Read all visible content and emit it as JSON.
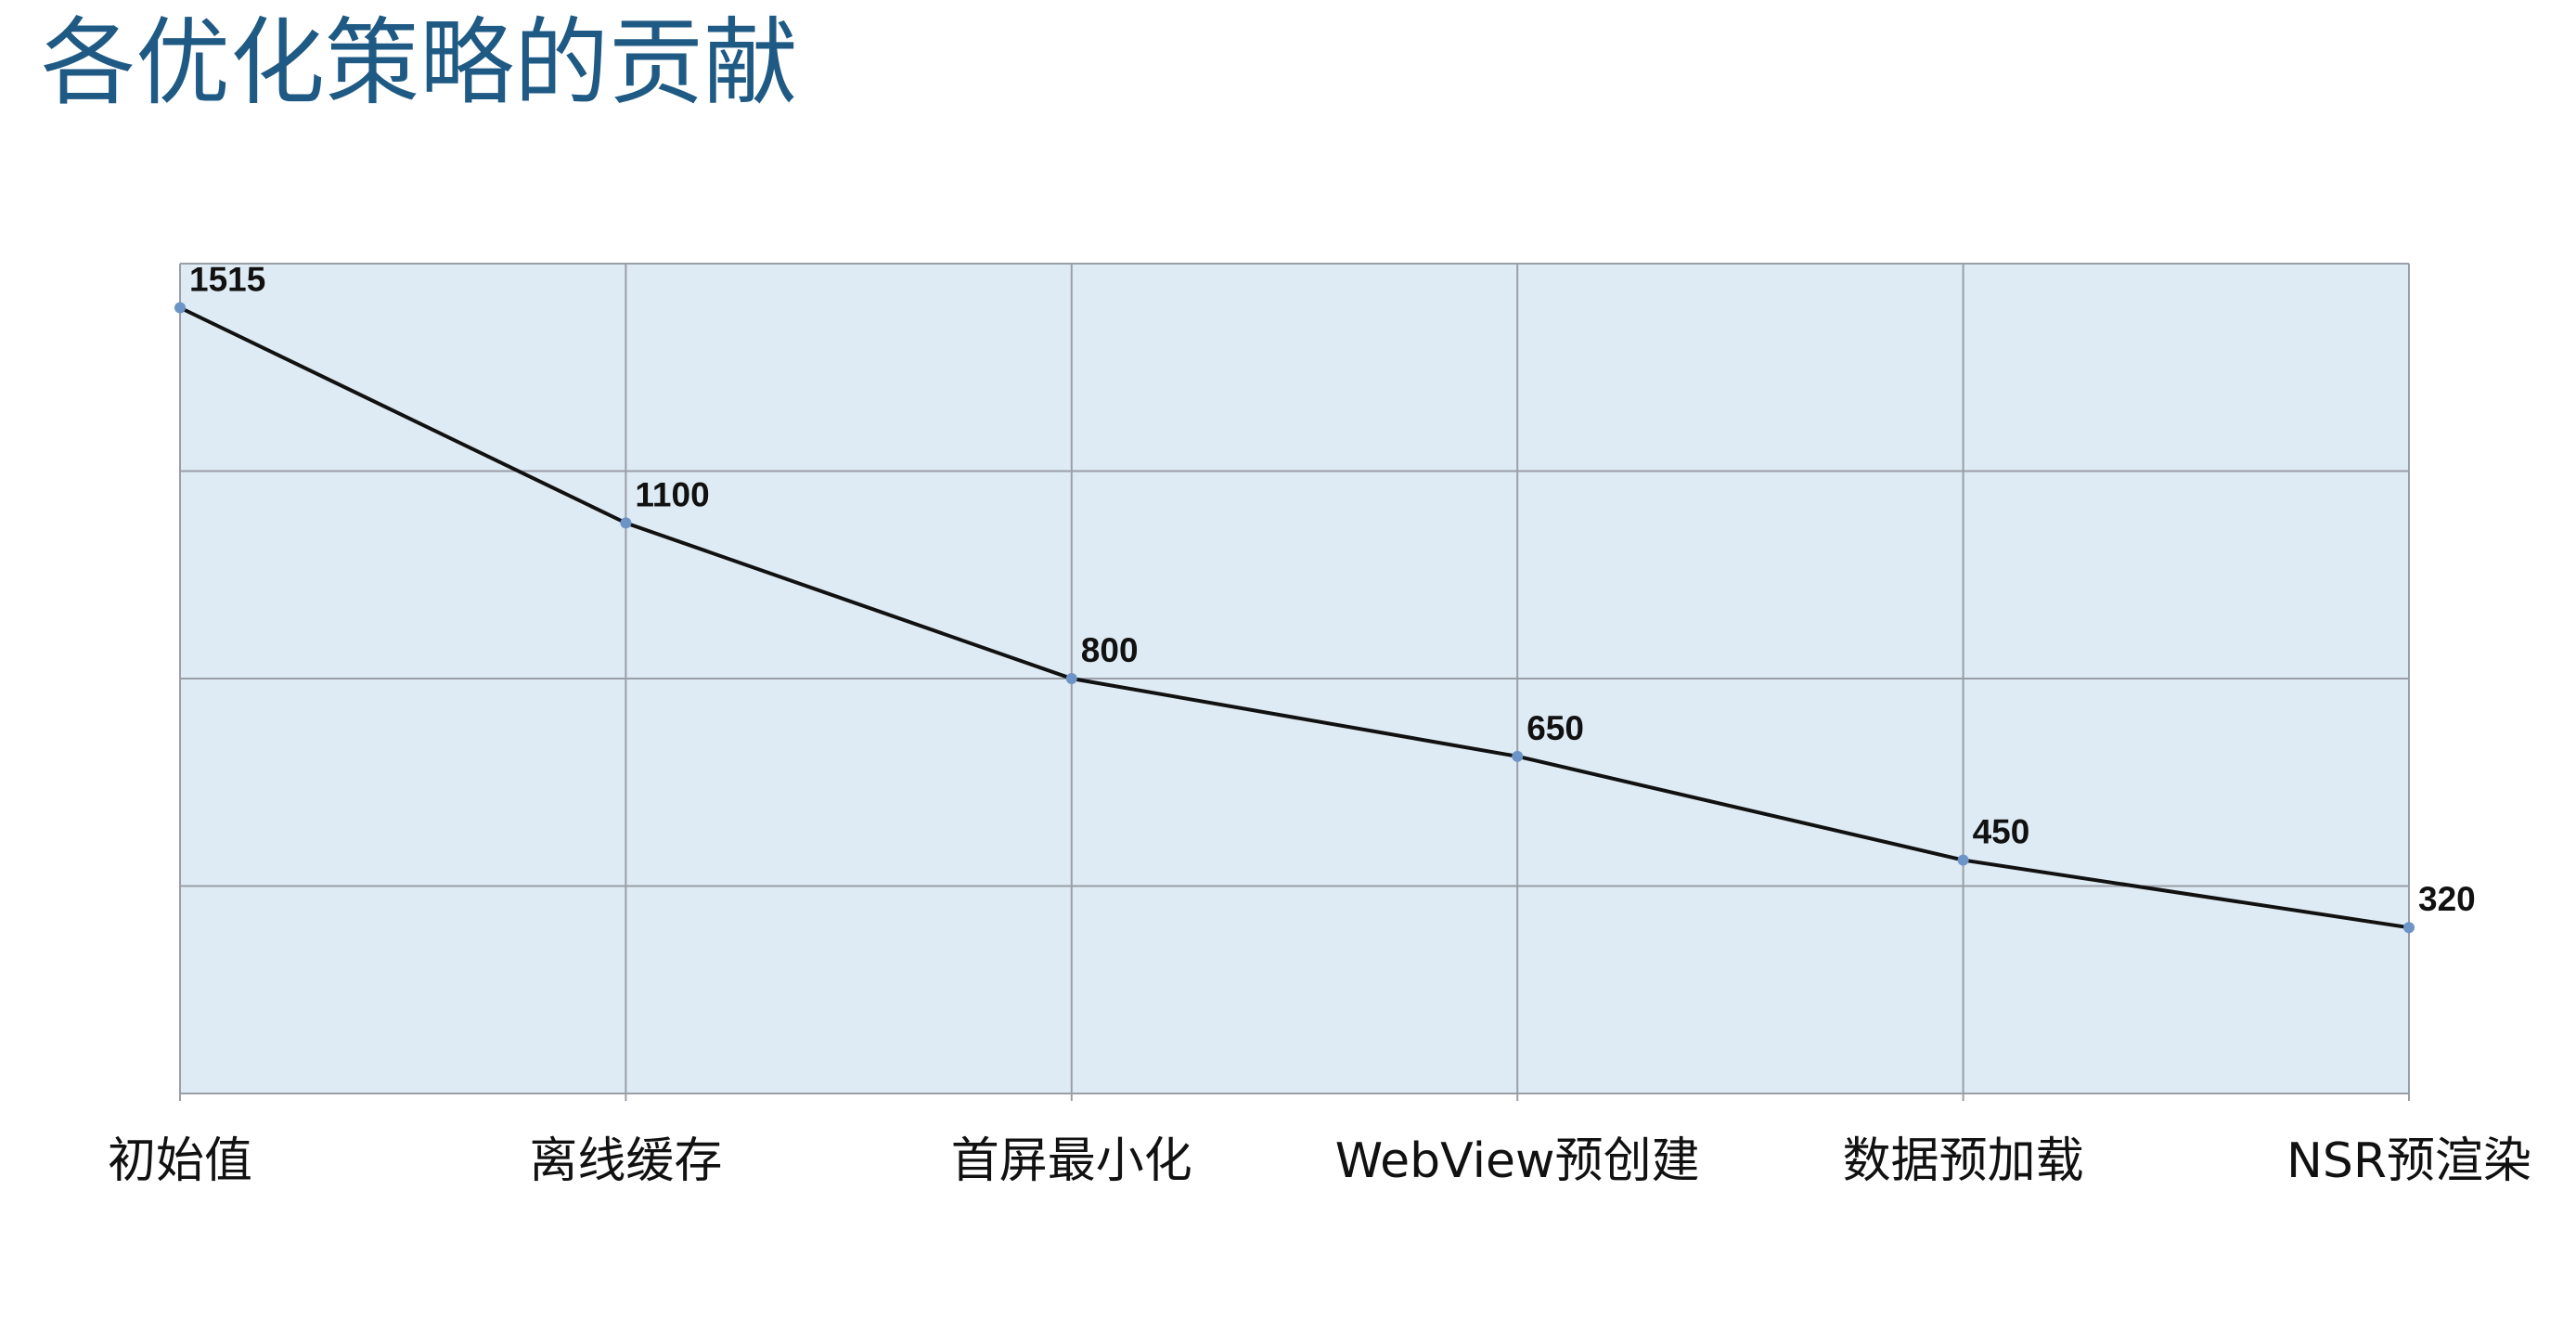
{
  "slide": {
    "title": "各优化策略的贡献"
  },
  "colors": {
    "title": "#1f5a84",
    "plot_background": "#deebf4",
    "grid": "#9a9ea6",
    "line": "#111111",
    "marker": "#6d94c6"
  },
  "chart_data": {
    "type": "line",
    "title": "",
    "xlabel": "",
    "ylabel": "",
    "categories": [
      "初始值",
      "离线缓存",
      "首屏最小化",
      "WebView预创建",
      "数据预加载",
      "NSR预渲染"
    ],
    "series": [
      {
        "values": [
          1515,
          1100,
          800,
          650,
          450,
          320
        ]
      }
    ],
    "ylim": [
      0,
      1600
    ],
    "y_gridline_values": [
      400,
      800,
      1200
    ],
    "y_tick_labels_shown": false,
    "grid": true,
    "legend": "none",
    "data_labels": true
  }
}
